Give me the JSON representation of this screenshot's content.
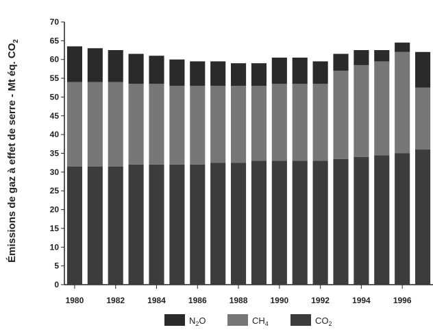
{
  "chart_data": {
    "type": "bar",
    "stacked": true,
    "ylabel": "Émissions de gaz à effet de serre - Mt éq. CO",
    "ylabel_sub": "2",
    "xlabel": "",
    "ylim": [
      0,
      70
    ],
    "yticks": [
      0,
      5,
      10,
      15,
      20,
      25,
      30,
      35,
      40,
      45,
      50,
      55,
      60,
      65,
      70
    ],
    "x_tick_labels": [
      "1980",
      "1982",
      "1984",
      "1986",
      "1988",
      "1990",
      "1992",
      "1994",
      "1996"
    ],
    "categories": [
      "1980",
      "1981",
      "1982",
      "1983",
      "1984",
      "1985",
      "1986",
      "1987",
      "1988",
      "1989",
      "1990",
      "1991",
      "1992",
      "1993",
      "1994",
      "1995",
      "1996",
      "1997"
    ],
    "series": [
      {
        "name": "CO2",
        "color": "#3c3c3c",
        "values": [
          31.5,
          31.5,
          31.5,
          32,
          32,
          32,
          32,
          32.5,
          32.5,
          33,
          33,
          33,
          33,
          33.5,
          34,
          34.5,
          35,
          36
        ]
      },
      {
        "name": "CH4",
        "color": "#777777",
        "values": [
          22.5,
          22.5,
          22.5,
          21.5,
          21.5,
          21,
          21,
          20.5,
          20.5,
          20,
          20.5,
          20.5,
          20.5,
          23.5,
          24.5,
          25,
          27,
          16.5
        ]
      },
      {
        "name": "N2O",
        "color": "#2a2a2a",
        "values": [
          9.5,
          9,
          8.5,
          8,
          7.5,
          7,
          6.5,
          6.5,
          6,
          6,
          7,
          7,
          6,
          4.5,
          4,
          3,
          2.5,
          9.5
        ]
      }
    ],
    "legend": {
      "placement": "bottom",
      "items": [
        {
          "label": "N",
          "sub": "2",
          "suffix": "O",
          "color": "#2a2a2a"
        },
        {
          "label": "CH",
          "sub": "4",
          "suffix": "",
          "color": "#777777"
        },
        {
          "label": "CO",
          "sub": "2",
          "suffix": "",
          "color": "#3c3c3c"
        }
      ]
    },
    "grid": false
  }
}
